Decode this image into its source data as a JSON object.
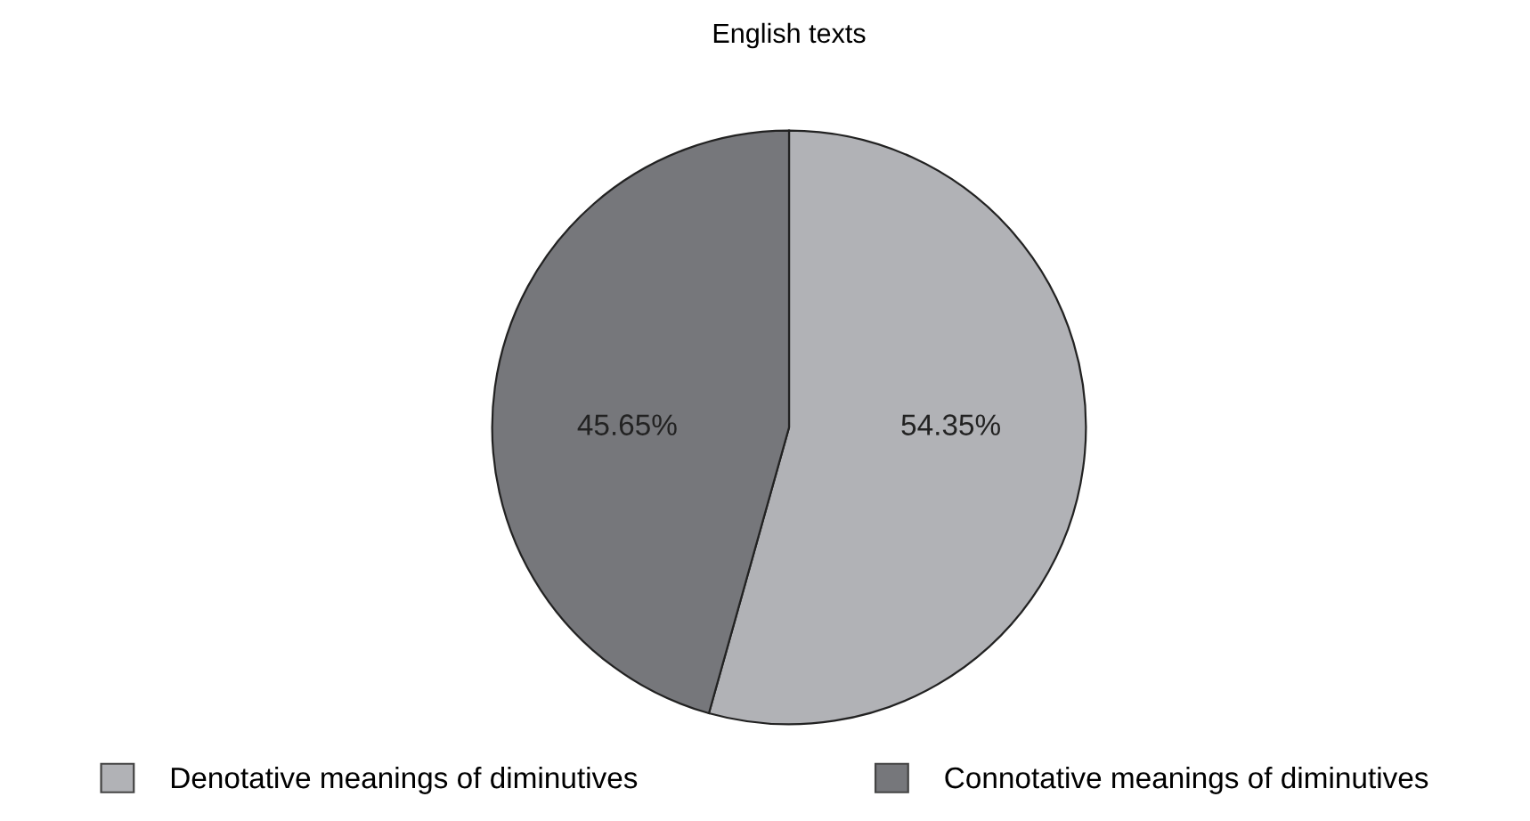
{
  "chart_data": {
    "type": "pie",
    "title": "English texts",
    "categories": [
      "Denotative meanings of diminutives",
      "Connotative meanings of diminutives"
    ],
    "values": [
      54.35,
      45.65
    ],
    "colors": [
      "#b1b2b6",
      "#76777b"
    ],
    "value_labels": [
      "54.35%",
      "45.65%"
    ],
    "legend": "bottom"
  }
}
